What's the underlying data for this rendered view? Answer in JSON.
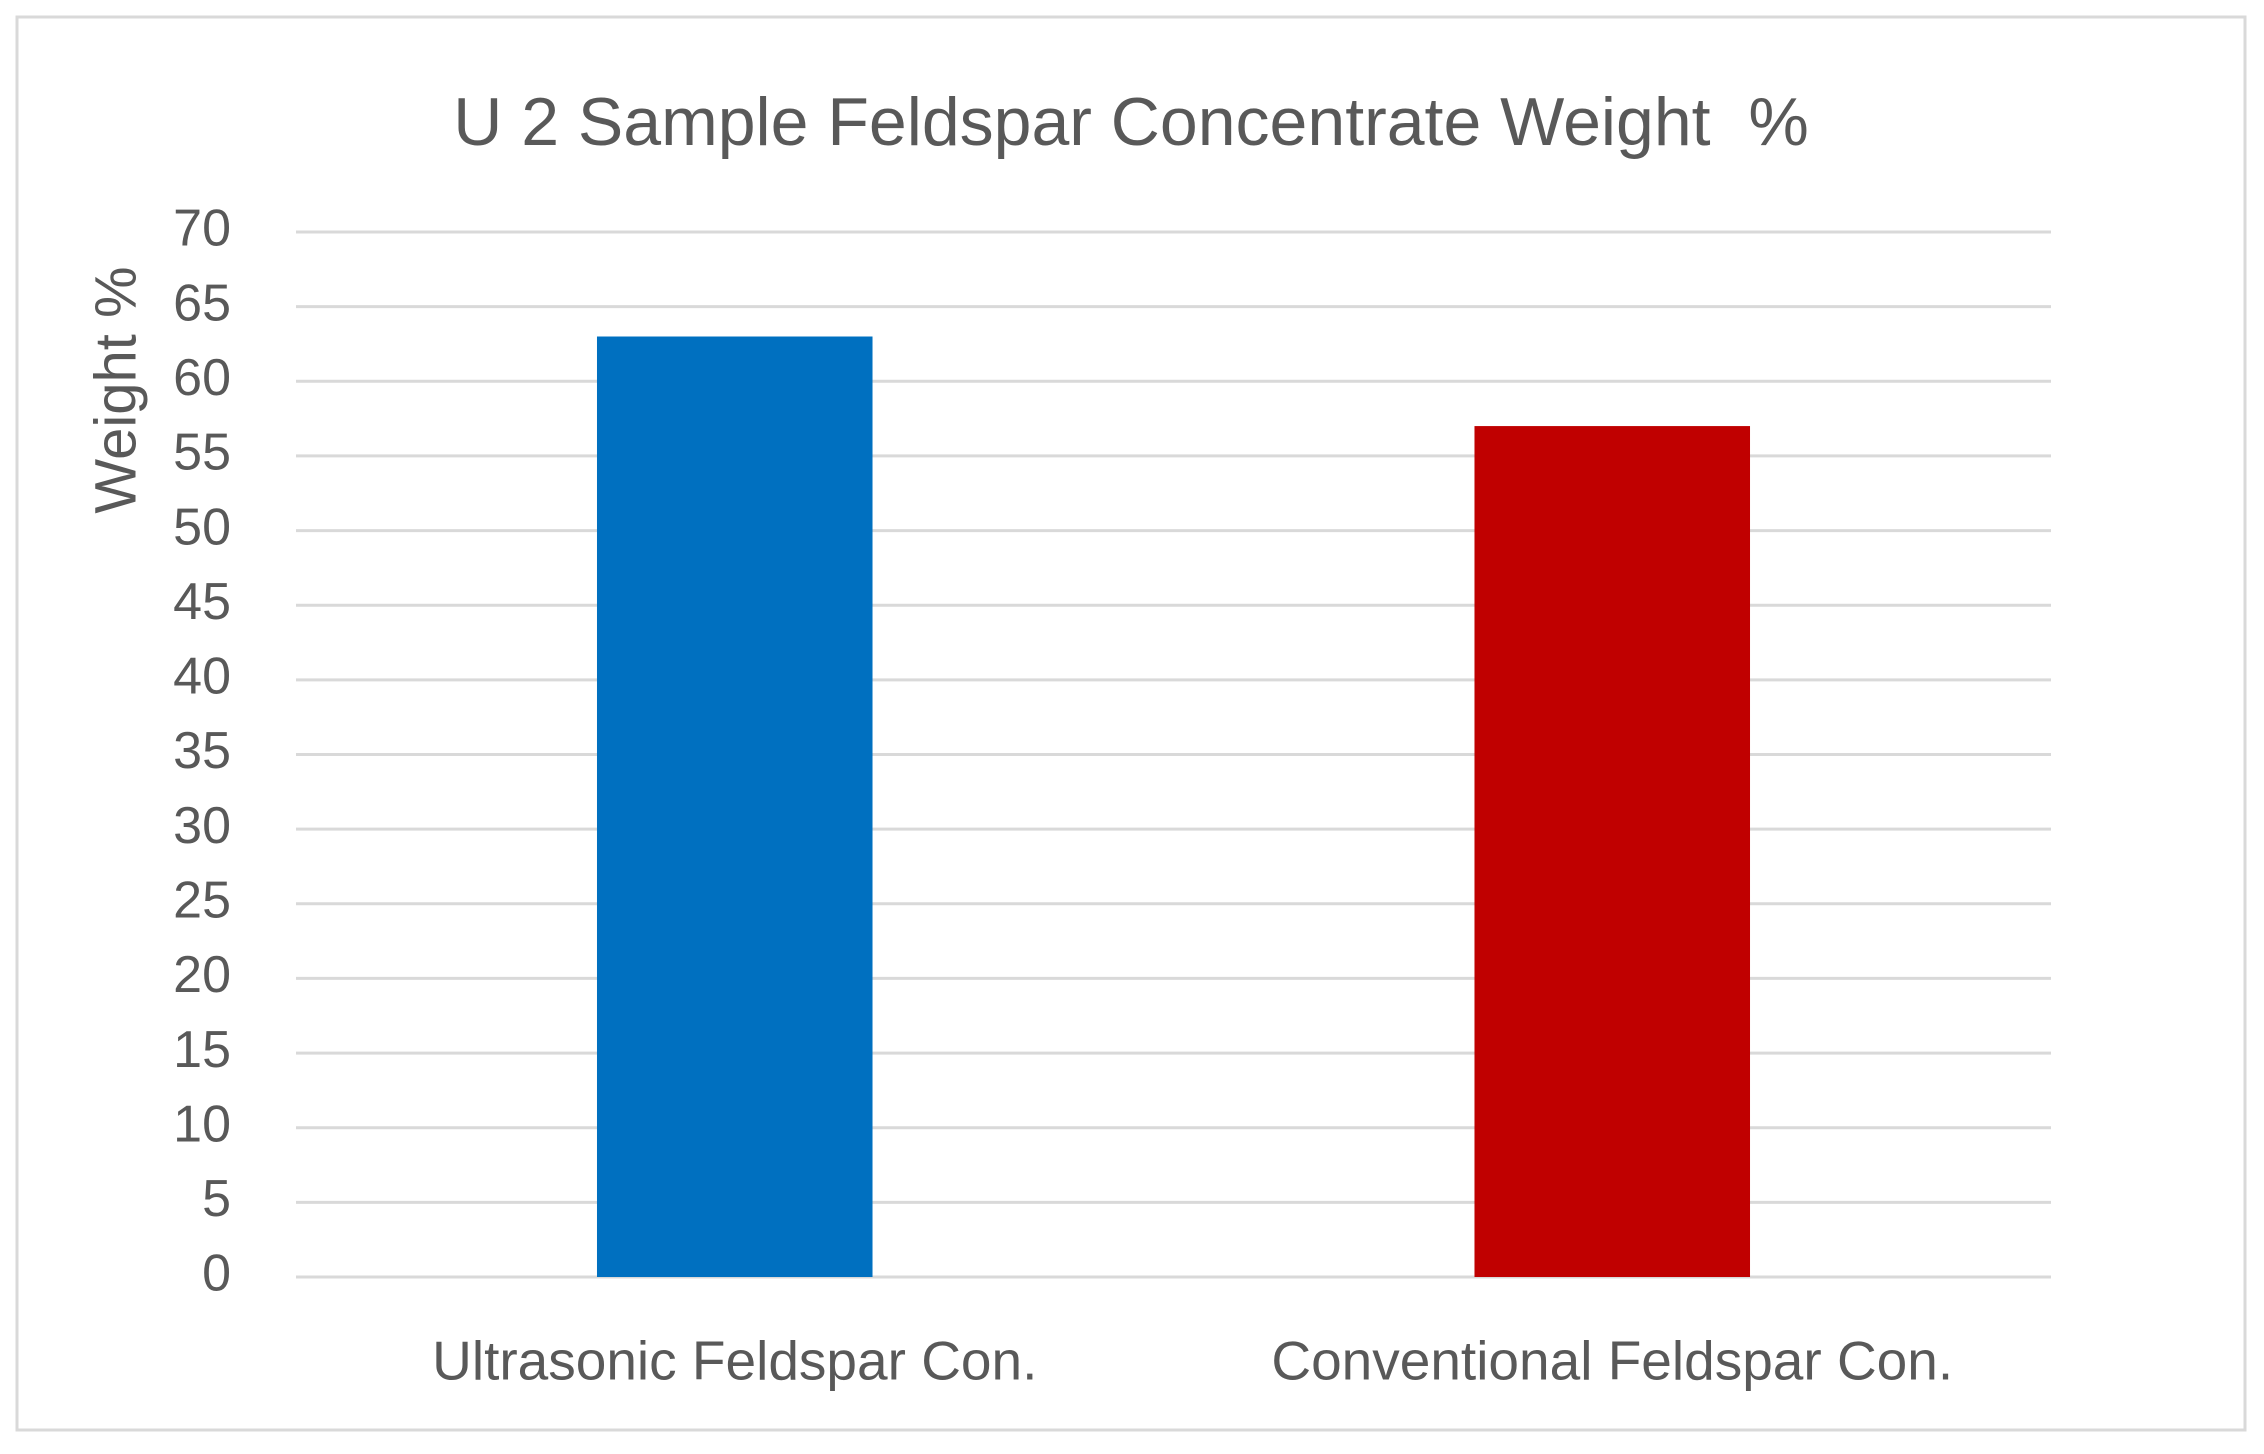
{
  "chart_data": {
    "type": "bar",
    "title": "U 2 Sample Feldspar Concentrate Weight  %",
    "y_label": "Weight %",
    "categories": [
      "Ultrasonic Feldspar Con.",
      "Conventional Feldspar Con."
    ],
    "values": [
      63,
      57
    ],
    "colors": [
      "#0070c0",
      "#c00000"
    ],
    "ylim": [
      0,
      70
    ],
    "yticks": [
      0,
      5,
      10,
      15,
      20,
      25,
      30,
      35,
      40,
      45,
      50,
      55,
      60,
      65,
      70
    ],
    "grid": true
  }
}
